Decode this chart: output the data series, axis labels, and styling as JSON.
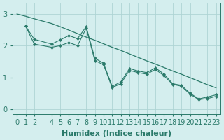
{
  "xlabel": "Humidex (Indice chaleur)",
  "background_color": "#d4eeee",
  "grid_color": "#aed4d4",
  "line_color": "#2a7a6a",
  "xlim": [
    -0.5,
    23.5
  ],
  "ylim": [
    -0.15,
    3.35
  ],
  "yticks": [
    0,
    1,
    2,
    3
  ],
  "xticks": [
    0,
    1,
    2,
    4,
    5,
    6,
    7,
    8,
    9,
    10,
    11,
    12,
    13,
    14,
    15,
    16,
    17,
    18,
    19,
    20,
    21,
    22,
    23
  ],
  "smooth_x": [
    0,
    1,
    2,
    4,
    5,
    6,
    7,
    8,
    9,
    10,
    11,
    12,
    13,
    14,
    15,
    16,
    17,
    18,
    19,
    20,
    21,
    22,
    23
  ],
  "smooth_y": [
    3.0,
    2.93,
    2.85,
    2.7,
    2.6,
    2.49,
    2.38,
    2.27,
    2.17,
    2.06,
    1.95,
    1.85,
    1.74,
    1.63,
    1.52,
    1.42,
    1.31,
    1.2,
    1.1,
    0.99,
    0.88,
    0.77,
    0.67
  ],
  "jagged1_x": [
    1,
    2,
    4,
    5,
    6,
    7,
    8,
    9,
    10,
    11,
    12,
    13,
    14,
    15,
    16,
    17,
    18,
    19,
    20,
    21,
    22,
    23
  ],
  "jagged1_y": [
    2.62,
    2.2,
    2.05,
    2.18,
    2.32,
    2.22,
    2.6,
    1.6,
    1.45,
    0.72,
    0.85,
    1.28,
    1.2,
    1.15,
    1.3,
    1.1,
    0.8,
    0.75,
    0.5,
    0.32,
    0.38,
    0.45
  ],
  "jagged2_x": [
    1,
    2,
    4,
    5,
    6,
    7,
    8,
    9,
    10,
    11,
    12,
    13,
    14,
    15,
    16,
    17,
    18,
    19,
    20,
    21,
    22,
    23
  ],
  "jagged2_y": [
    2.62,
    2.05,
    1.95,
    2.0,
    2.1,
    2.0,
    2.55,
    1.53,
    1.4,
    0.68,
    0.8,
    1.22,
    1.15,
    1.1,
    1.25,
    1.05,
    0.78,
    0.72,
    0.47,
    0.3,
    0.33,
    0.4
  ],
  "font_size_label": 8,
  "font_size_tick": 7
}
